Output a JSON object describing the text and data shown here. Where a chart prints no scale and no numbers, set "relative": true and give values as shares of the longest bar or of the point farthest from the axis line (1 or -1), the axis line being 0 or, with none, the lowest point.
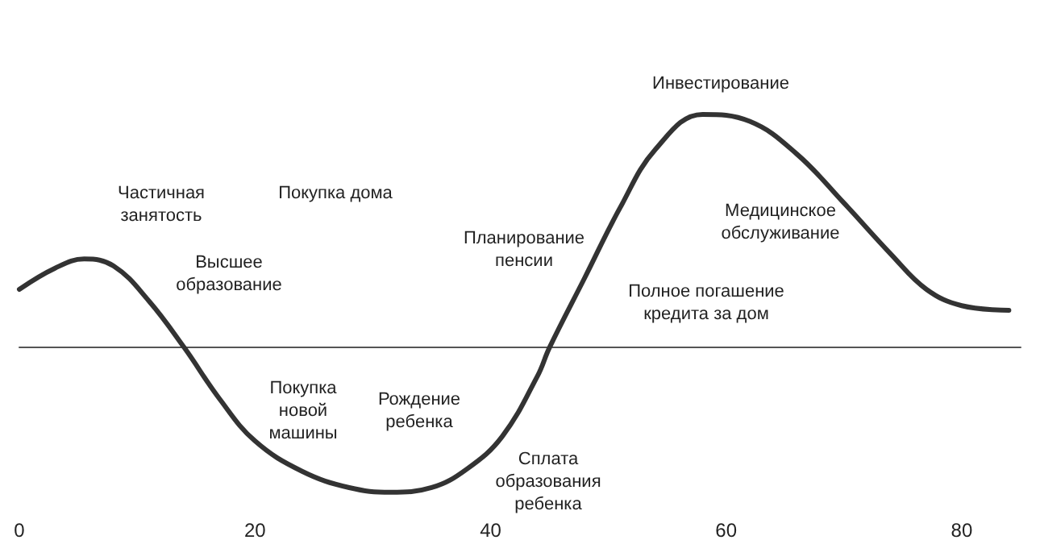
{
  "chart_data": {
    "type": "line",
    "relative": true,
    "color": "#333333",
    "x": [
      0,
      3,
      5.5,
      8,
      11,
      14,
      17,
      20,
      24,
      28,
      31.5,
      35,
      38,
      41,
      44,
      45,
      48,
      51,
      54,
      58,
      62,
      66,
      70,
      74,
      77,
      80,
      84
    ],
    "values": [
      0.25,
      0.34,
      0.38,
      0.35,
      0.2,
      0,
      -0.22,
      -0.4,
      -0.53,
      -0.6,
      -0.62,
      -0.6,
      -0.52,
      -0.38,
      -0.12,
      0,
      0.3,
      0.6,
      0.85,
      1,
      0.97,
      0.83,
      0.62,
      0.4,
      0.25,
      0.18,
      0.16
    ],
    "xlim": [
      0,
      85
    ],
    "xticks": [
      0,
      20,
      40,
      60,
      80
    ],
    "grid": false,
    "marker": "none",
    "line_style": "solid",
    "annotations": [
      "Частичная\nзанятость",
      "Высшее\nобразование",
      "Покупка дома",
      "Покупка\nновой\nмашины",
      "Рождение\nребенка",
      "Сплата\nобразования\nребенка",
      "Планирование\nпенсии",
      "Инвестирование",
      "Полное погашение\nкредита за дом",
      "Медицинское\nобслуживание"
    ]
  }
}
